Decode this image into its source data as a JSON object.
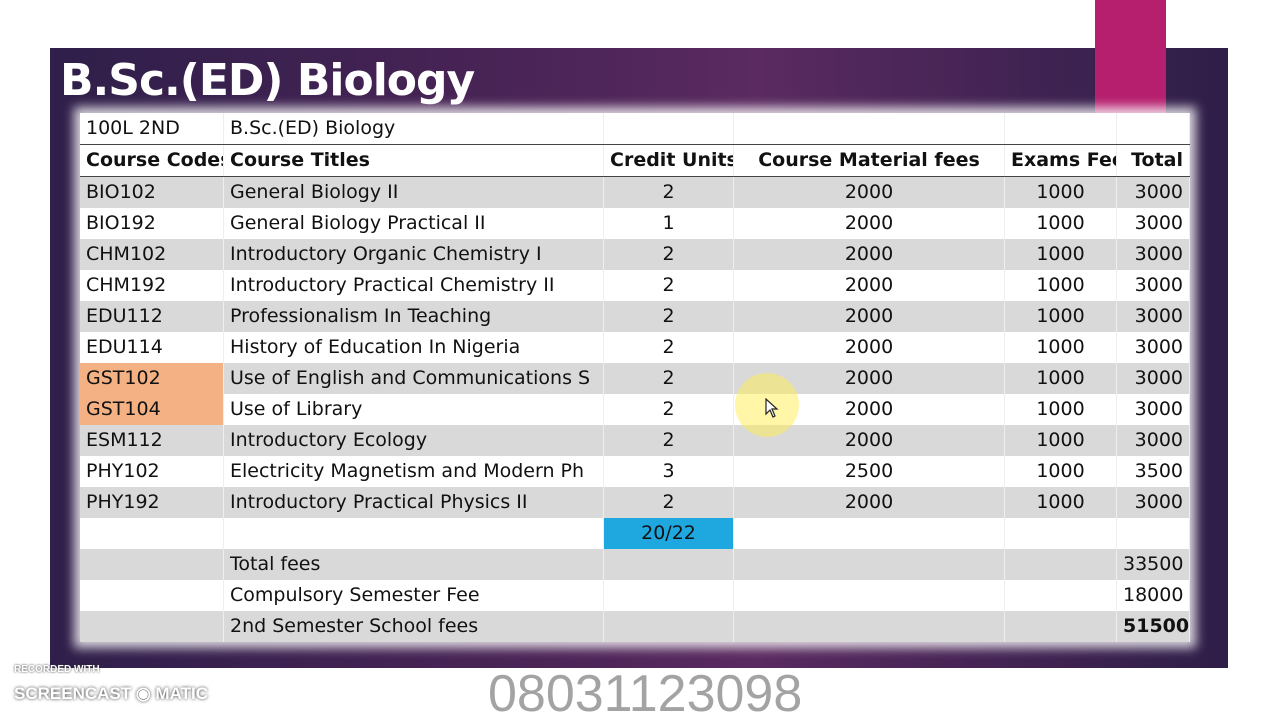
{
  "title": "B.Sc.(ED) Biology",
  "meta": {
    "level": "100L 2ND",
    "program": "B.Sc.(ED) Biology"
  },
  "headers": [
    "Course Codes",
    "Course Titles",
    "Credit Units",
    "Course Material fees",
    "Exams Fee",
    "Total"
  ],
  "rows": [
    [
      "BIO102",
      "General Biology II",
      "2",
      "2000",
      "1000",
      "3000"
    ],
    [
      "BIO192",
      "General Biology Practical II",
      "1",
      "2000",
      "1000",
      "3000"
    ],
    [
      "CHM102",
      "Introductory Organic Chemistry I",
      "2",
      "2000",
      "1000",
      "3000"
    ],
    [
      "CHM192",
      "Introductory Practical Chemistry II",
      "2",
      "2000",
      "1000",
      "3000"
    ],
    [
      "EDU112",
      "Professionalism In Teaching",
      "2",
      "2000",
      "1000",
      "3000"
    ],
    [
      "EDU114",
      "History of Education In Nigeria",
      "2",
      "2000",
      "1000",
      "3000"
    ],
    [
      "GST102",
      "Use of English and Communications S",
      "2",
      "2000",
      "1000",
      "3000"
    ],
    [
      "GST104",
      "Use of Library",
      "2",
      "2000",
      "1000",
      "3000"
    ],
    [
      "ESM112",
      "Introductory Ecology",
      "2",
      "2000",
      "1000",
      "3000"
    ],
    [
      "PHY102",
      "Electricity Magnetism and Modern Ph",
      "3",
      "2500",
      "1000",
      "3500"
    ],
    [
      "PHY192",
      "Introductory Practical Physics II",
      "2",
      "2000",
      "1000",
      "3000"
    ]
  ],
  "credit_total": "20/22",
  "summary": [
    {
      "label": "Total fees",
      "value": "33500"
    },
    {
      "label": "Compulsory Semester Fee",
      "value": "18000"
    },
    {
      "label": "2nd Semester School fees",
      "value": "51500"
    }
  ],
  "watermark": "08031123098",
  "recorder": {
    "line1": "RECORDED WITH",
    "line2": "SCREENCAST ◉ MATIC"
  },
  "colors": {
    "highlight_orange": "#f4b183",
    "highlight_blue": "#1fa8e0",
    "slide_bg": "#4a2456",
    "accent_pink": "#b51f6e"
  }
}
